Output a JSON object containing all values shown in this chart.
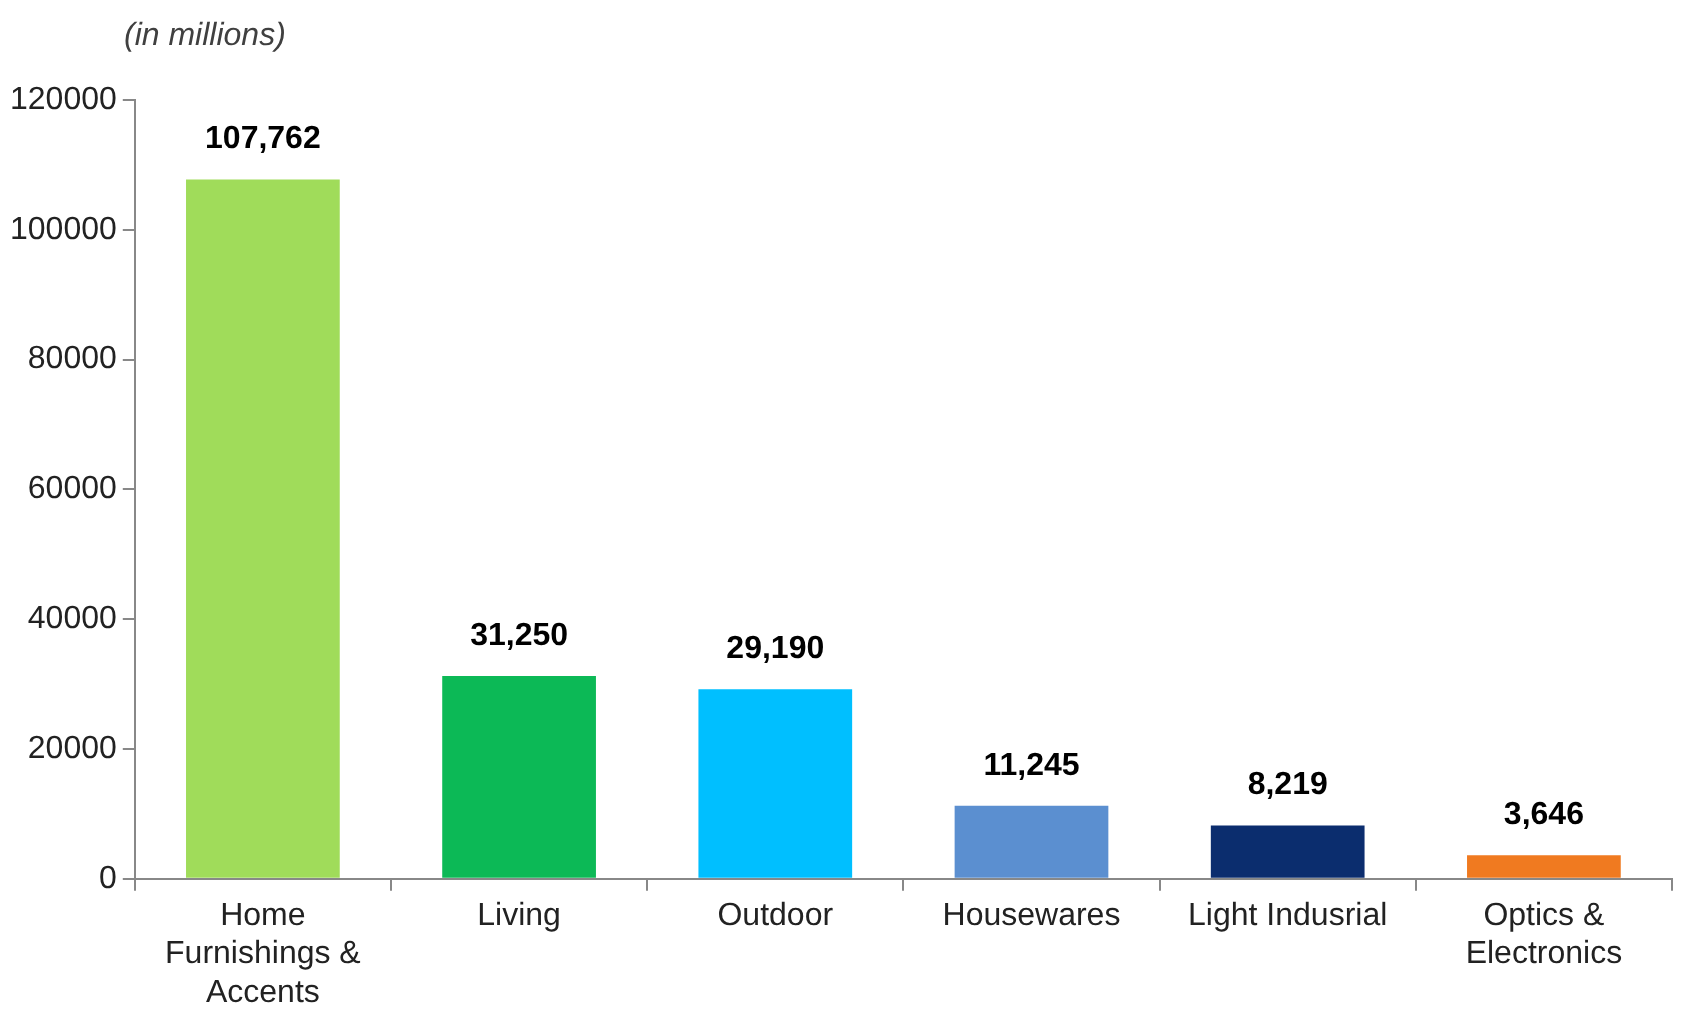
{
  "chart_data": {
    "type": "bar",
    "ylabel": "(in millions)",
    "categories": [
      "Home Furnishings & Accents",
      "Living",
      "Outdoor",
      "Housewares",
      "Light Indusrial",
      "Optics & Electronics"
    ],
    "values": [
      107762,
      31250,
      29190,
      11245,
      8219,
      3646
    ],
    "value_labels": [
      "107,762",
      "31,250",
      "29,190",
      "11,245",
      "8,219",
      "3,646"
    ],
    "colors": [
      "#a0dc5a",
      "#0cb956",
      "#00bfff",
      "#5b8fd0",
      "#0b2d6e",
      "#f07a20"
    ],
    "ylim": [
      0,
      120000
    ],
    "yticks": [
      0,
      20000,
      40000,
      60000,
      80000,
      100000,
      120000
    ],
    "grid": false,
    "legend": false
  }
}
